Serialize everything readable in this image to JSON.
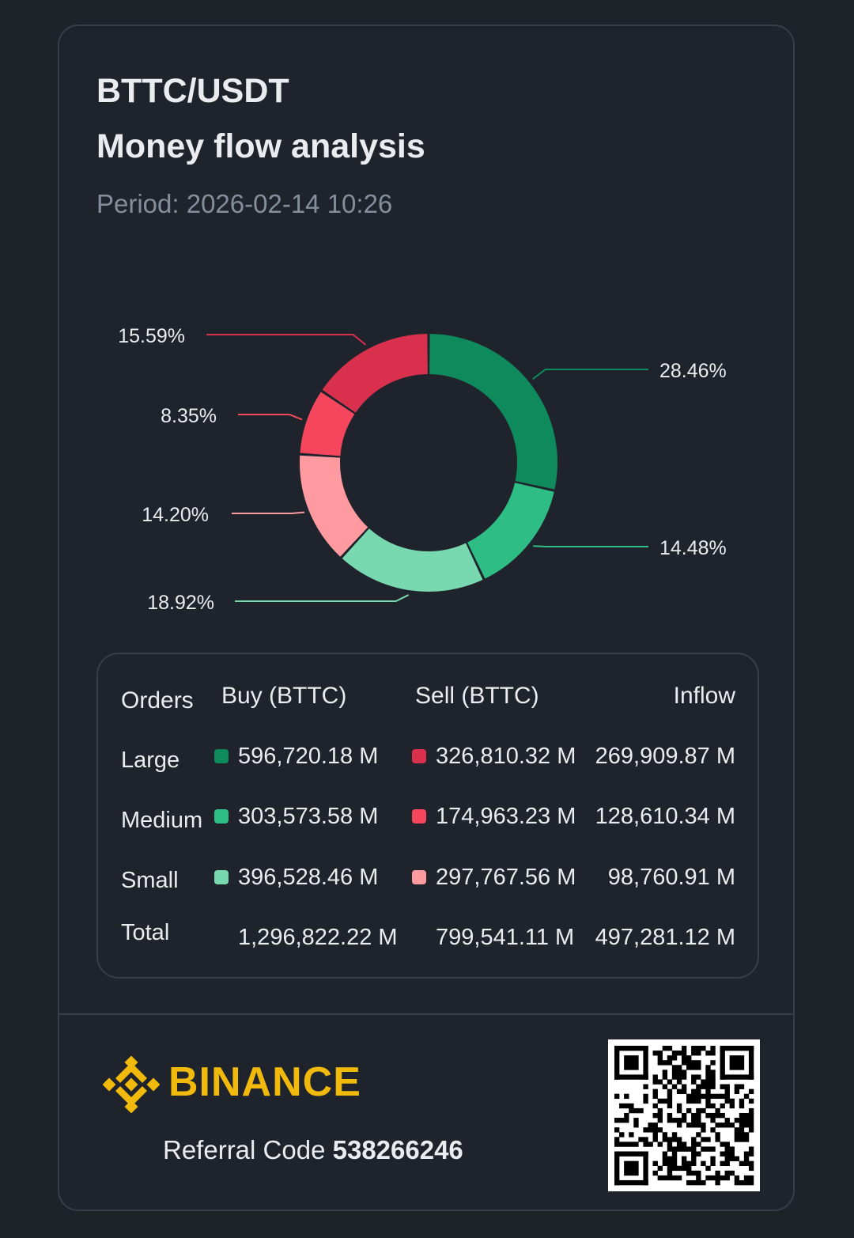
{
  "header": {
    "pair": "BTTC/USDT",
    "title": "Money flow analysis",
    "period": "Period: 2026-02-14 10:26"
  },
  "chart_data": {
    "type": "pie",
    "style": "donut",
    "slices": [
      {
        "label": "Large buy",
        "value": 28.46,
        "display": "28.46%",
        "color": "#0e8a5c"
      },
      {
        "label": "Medium buy",
        "value": 14.48,
        "display": "14.48%",
        "color": "#2ebd85"
      },
      {
        "label": "Small buy",
        "value": 18.92,
        "display": "18.92%",
        "color": "#78d9b0"
      },
      {
        "label": "Small sell",
        "value": 14.2,
        "display": "14.20%",
        "color": "#ff9aa0"
      },
      {
        "label": "Medium sell",
        "value": 8.35,
        "display": "8.35%",
        "color": "#f6465d"
      },
      {
        "label": "Large sell",
        "value": 15.59,
        "display": "15.59%",
        "color": "#d9304e"
      }
    ]
  },
  "table": {
    "headers": {
      "orders": "Orders",
      "buy": "Buy (BTTC)",
      "sell": "Sell (BTTC)",
      "inflow": "Inflow"
    },
    "rows": [
      {
        "label": "Large",
        "buy": "596,720.18 M",
        "sell": "326,810.32 M",
        "inflow": "269,909.87 M",
        "buy_color": "#0e8a5c",
        "sell_color": "#d9304e"
      },
      {
        "label": "Medium",
        "buy": "303,573.58 M",
        "sell": "174,963.23 M",
        "inflow": "128,610.34 M",
        "buy_color": "#2ebd85",
        "sell_color": "#f6465d"
      },
      {
        "label": "Small",
        "buy": "396,528.46 M",
        "sell": "297,767.56 M",
        "inflow": "98,760.91 M",
        "buy_color": "#78d9b0",
        "sell_color": "#ff9aa0"
      }
    ],
    "total": {
      "label": "Total",
      "buy": "1,296,822.22 M",
      "sell": "799,541.11 M",
      "inflow": "497,281.12 M"
    }
  },
  "footer": {
    "brand": "BINANCE",
    "brand_color": "#f0b90b",
    "referral_label": "Referral Code",
    "referral_code": "538266246",
    "qr_icon": "qr-code-icon"
  }
}
